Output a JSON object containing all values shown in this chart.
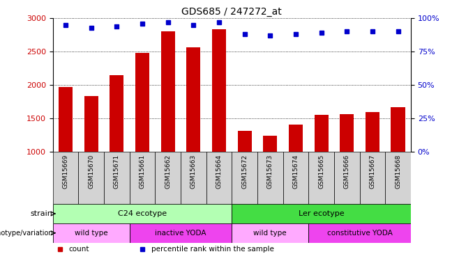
{
  "title": "GDS685 / 247272_at",
  "samples": [
    "GSM15669",
    "GSM15670",
    "GSM15671",
    "GSM15661",
    "GSM15662",
    "GSM15663",
    "GSM15664",
    "GSM15672",
    "GSM15673",
    "GSM15674",
    "GSM15665",
    "GSM15666",
    "GSM15667",
    "GSM15668"
  ],
  "counts": [
    1970,
    1830,
    2150,
    2480,
    2800,
    2560,
    2840,
    1310,
    1240,
    1400,
    1550,
    1560,
    1590,
    1670
  ],
  "percentiles": [
    95,
    93,
    94,
    96,
    97,
    95,
    97,
    88,
    87,
    88,
    89,
    90,
    90,
    90
  ],
  "ylim_left": [
    1000,
    3000
  ],
  "ylim_right": [
    0,
    100
  ],
  "yticks_left": [
    1000,
    1500,
    2000,
    2500,
    3000
  ],
  "yticks_right": [
    0,
    25,
    50,
    75,
    100
  ],
  "bar_color": "#cc0000",
  "dot_color": "#0000cc",
  "bg_color": "#ffffff",
  "tick_bg_color": "#d3d3d3",
  "strain_colors": [
    "#b3ffb3",
    "#44dd44"
  ],
  "strain_labels": [
    {
      "text": "C24 ecotype",
      "start": 0,
      "end": 7,
      "color": "#b3ffb3"
    },
    {
      "text": "Ler ecotype",
      "start": 7,
      "end": 14,
      "color": "#44dd44"
    }
  ],
  "genotype_labels": [
    {
      "text": "wild type",
      "start": 0,
      "end": 3,
      "color": "#ffaaff"
    },
    {
      "text": "inactive YODA",
      "start": 3,
      "end": 7,
      "color": "#ee44ee"
    },
    {
      "text": "wild type",
      "start": 7,
      "end": 10,
      "color": "#ffaaff"
    },
    {
      "text": "constitutive YODA",
      "start": 10,
      "end": 14,
      "color": "#ee44ee"
    }
  ],
  "legend_items": [
    {
      "label": "count",
      "color": "#cc0000"
    },
    {
      "label": "percentile rank within the sample",
      "color": "#0000cc"
    }
  ]
}
